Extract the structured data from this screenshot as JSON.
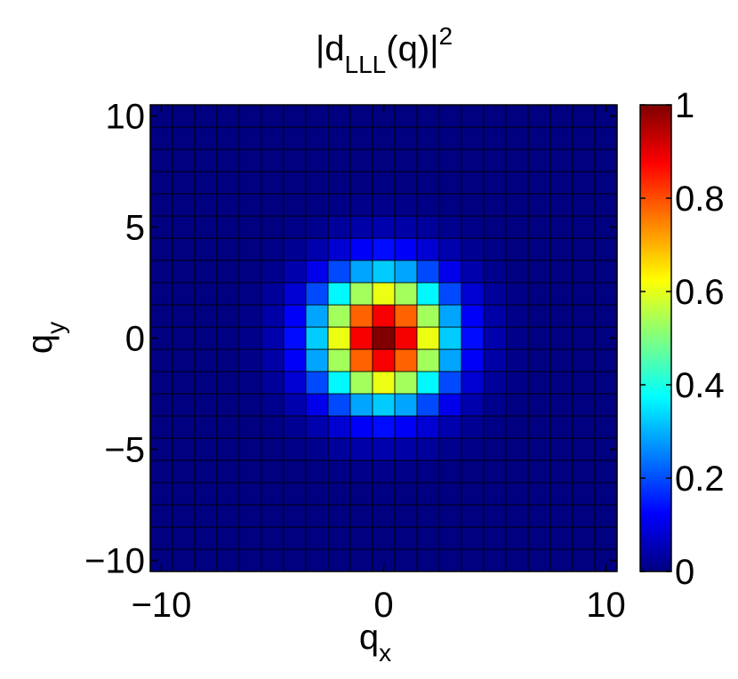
{
  "chart_data": {
    "type": "heatmap",
    "title": {
      "prefix": "|d",
      "subscript": "LLL",
      "suffix": "(q)|",
      "superscript": "2"
    },
    "xlabel": {
      "base": "q",
      "subscript": "x"
    },
    "ylabel": {
      "base": "q",
      "subscript": "y"
    },
    "xlim": [
      -10.5,
      10.5
    ],
    "ylim": [
      -10.5,
      10.5
    ],
    "x_ticks": [
      "−10",
      "0",
      "10"
    ],
    "x_tick_values": [
      -10,
      0,
      10
    ],
    "y_ticks": [
      "10",
      "5",
      "0",
      "−5",
      "−10"
    ],
    "y_tick_values": [
      10,
      5,
      0,
      -5,
      -10
    ],
    "grid": {
      "qx_min": -10,
      "qx_max": 10,
      "qy_min": -10,
      "qy_max": 10,
      "step": 1
    },
    "function": "exp(-(qx^2+qy^2)/8)",
    "sample_values": [
      {
        "qx": 0,
        "qy": 0,
        "value": 1.0
      },
      {
        "qx": 1,
        "qy": 0,
        "value": 0.88
      },
      {
        "qx": 1,
        "qy": 1,
        "value": 0.78
      },
      {
        "qx": 2,
        "qy": 0,
        "value": 0.61
      },
      {
        "qx": 2,
        "qy": 1,
        "value": 0.54
      },
      {
        "qx": 2,
        "qy": 2,
        "value": 0.37
      },
      {
        "qx": 3,
        "qy": 0,
        "value": 0.32
      },
      {
        "qx": 3,
        "qy": 1,
        "value": 0.29
      },
      {
        "qx": 3,
        "qy": 2,
        "value": 0.2
      },
      {
        "qx": 4,
        "qy": 0,
        "value": 0.14
      }
    ],
    "colorbar": {
      "colormap": "jet",
      "clim": [
        0,
        1
      ],
      "ticks": [
        "0",
        "0.2",
        "0.4",
        "0.6",
        "0.8",
        "1"
      ],
      "tick_values": [
        0,
        0.2,
        0.4,
        0.6,
        0.8,
        1
      ]
    },
    "colors": {
      "cell_edge": "#000000",
      "jet_low": "#00008f",
      "jet_high": "#800000"
    }
  }
}
